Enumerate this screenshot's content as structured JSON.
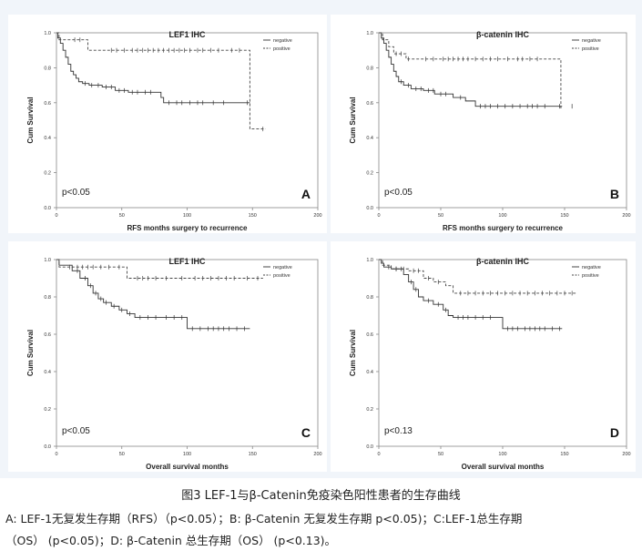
{
  "caption": {
    "title": "图3 LEF-1与β-Catenin免疫染色阳性患者的生存曲线",
    "line1": "A: LEF-1无复发生存期（RFS）（p<0.05）；B: β-Catenin 无复发生存期  p<0.05)；C:LEF-1总生存期",
    "line2": "（OS）  (p<0.05)；D: β-Catenin 总生存期（OS）  (p<0.13)。"
  },
  "colors": {
    "negative": "#333333",
    "positive": "#444444",
    "axis": "#888888",
    "panel_bg": "#ffffff",
    "figure_bg": "#f1f5fa"
  },
  "chart_data": [
    {
      "type": "line",
      "panel_letter": "A",
      "title": "LEF1 IHC",
      "xlabel": "RFS months surgery to recurrence",
      "ylabel": "Cum Survival",
      "pvalue": "p<0.05",
      "xticks": [
        "0",
        "50",
        "100",
        "150",
        "200"
      ],
      "yticks": [
        "0.0",
        "0.2",
        "0.4",
        "0.6",
        "0.8",
        "1.0"
      ],
      "xlim": [
        0,
        200
      ],
      "ylim": [
        0,
        1
      ],
      "legend": [
        "negative",
        "positive"
      ],
      "series": [
        {
          "name": "negative",
          "style": "solid",
          "steps": [
            [
              0,
              1.0
            ],
            [
              1,
              0.97
            ],
            [
              3,
              0.94
            ],
            [
              5,
              0.9
            ],
            [
              7,
              0.86
            ],
            [
              9,
              0.82
            ],
            [
              11,
              0.78
            ],
            [
              13,
              0.76
            ],
            [
              15,
              0.74
            ],
            [
              17,
              0.72
            ],
            [
              20,
              0.71
            ],
            [
              25,
              0.7
            ],
            [
              35,
              0.69
            ],
            [
              45,
              0.67
            ],
            [
              55,
              0.66
            ],
            [
              80,
              0.63
            ],
            [
              82,
              0.6
            ],
            [
              148,
              0.6
            ]
          ],
          "censored": [
            22,
            27,
            32,
            38,
            42,
            48,
            52,
            58,
            62,
            68,
            72,
            86,
            92,
            96,
            102,
            108,
            112,
            120,
            128,
            146
          ]
        },
        {
          "name": "positive",
          "style": "dashed",
          "steps": [
            [
              0,
              1.0
            ],
            [
              2,
              0.96
            ],
            [
              22,
              0.96
            ],
            [
              24,
              0.9
            ],
            [
              146,
              0.9
            ],
            [
              148,
              0.45
            ],
            [
              160,
              0.45
            ]
          ],
          "censored": [
            14,
            18,
            42,
            46,
            52,
            58,
            62,
            66,
            70,
            74,
            78,
            82,
            86,
            90,
            94,
            98,
            102,
            108,
            112,
            118,
            124,
            134,
            140,
            158
          ]
        }
      ]
    },
    {
      "type": "line",
      "panel_letter": "B",
      "title": "β-catenin IHC",
      "xlabel": "RFS months surgery to recurrence",
      "ylabel": "Cum Survival",
      "pvalue": "p<0.05",
      "xticks": [
        "0",
        "50",
        "100",
        "150",
        "200"
      ],
      "yticks": [
        "0.0",
        "0.2",
        "0.4",
        "0.6",
        "0.8",
        "1.0"
      ],
      "xlim": [
        0,
        200
      ],
      "ylim": [
        0,
        1
      ],
      "legend": [
        "negative",
        "positive"
      ],
      "series": [
        {
          "name": "negative",
          "style": "solid",
          "steps": [
            [
              0,
              1.0
            ],
            [
              2,
              0.97
            ],
            [
              4,
              0.94
            ],
            [
              6,
              0.9
            ],
            [
              8,
              0.86
            ],
            [
              10,
              0.82
            ],
            [
              12,
              0.78
            ],
            [
              14,
              0.75
            ],
            [
              16,
              0.72
            ],
            [
              20,
              0.7
            ],
            [
              26,
              0.68
            ],
            [
              36,
              0.67
            ],
            [
              45,
              0.65
            ],
            [
              60,
              0.63
            ],
            [
              70,
              0.61
            ],
            [
              78,
              0.58
            ],
            [
              148,
              0.58
            ]
          ],
          "censored": [
            18,
            24,
            30,
            34,
            40,
            44,
            50,
            54,
            66,
            82,
            86,
            90,
            96,
            102,
            108,
            114,
            120,
            124,
            128,
            134,
            146,
            156
          ]
        },
        {
          "name": "positive",
          "style": "dashed",
          "steps": [
            [
              0,
              1.0
            ],
            [
              3,
              0.96
            ],
            [
              8,
              0.92
            ],
            [
              12,
              0.88
            ],
            [
              22,
              0.85
            ],
            [
              146,
              0.85
            ],
            [
              147,
              0.57
            ],
            [
              148,
              0.57
            ]
          ],
          "censored": [
            14,
            18,
            24,
            38,
            44,
            52,
            56,
            60,
            64,
            68,
            72,
            78,
            84,
            90,
            96,
            104,
            112,
            116,
            122,
            128
          ]
        }
      ]
    },
    {
      "type": "line",
      "panel_letter": "C",
      "title": "LEF1 IHC",
      "xlabel": "Overall survival months",
      "ylabel": "Cum Survival",
      "pvalue": "p<0.05",
      "xticks": [
        "0",
        "50",
        "100",
        "150",
        "200"
      ],
      "yticks": [
        "0.0",
        "0.2",
        "0.4",
        "0.6",
        "0.8",
        "1.0"
      ],
      "xlim": [
        0,
        200
      ],
      "ylim": [
        0,
        1
      ],
      "legend": [
        "negative",
        "positive"
      ],
      "series": [
        {
          "name": "negative",
          "style": "solid",
          "steps": [
            [
              0,
              1.0
            ],
            [
              2,
              0.97
            ],
            [
              12,
              0.94
            ],
            [
              18,
              0.9
            ],
            [
              24,
              0.86
            ],
            [
              28,
              0.82
            ],
            [
              32,
              0.79
            ],
            [
              36,
              0.77
            ],
            [
              42,
              0.75
            ],
            [
              48,
              0.73
            ],
            [
              54,
              0.71
            ],
            [
              60,
              0.69
            ],
            [
              98,
              0.69
            ],
            [
              100,
              0.63
            ],
            [
              148,
              0.63
            ]
          ],
          "censored": [
            16,
            22,
            26,
            30,
            34,
            38,
            44,
            50,
            56,
            64,
            70,
            76,
            84,
            90,
            96,
            104,
            110,
            116,
            120,
            124,
            128,
            132,
            138,
            144
          ]
        },
        {
          "name": "positive",
          "style": "dashed",
          "steps": [
            [
              0,
              1.0
            ],
            [
              2,
              0.96
            ],
            [
              52,
              0.96
            ],
            [
              54,
              0.9
            ],
            [
              158,
              0.9
            ]
          ],
          "censored": [
            10,
            16,
            20,
            24,
            28,
            34,
            40,
            48,
            62,
            66,
            70,
            76,
            84,
            96,
            106,
            112,
            118,
            124,
            130,
            136,
            146,
            154
          ]
        }
      ]
    },
    {
      "type": "line",
      "panel_letter": "D",
      "title": "β-catenin IHC",
      "xlabel": "Overall survival months",
      "ylabel": "Cum Survival",
      "pvalue": "p<0.13",
      "xticks": [
        "0",
        "50",
        "100",
        "150",
        "200"
      ],
      "yticks": [
        "0.0",
        "0.2",
        "0.4",
        "0.6",
        "0.8",
        "1.0"
      ],
      "xlim": [
        0,
        200
      ],
      "ylim": [
        0,
        1
      ],
      "legend": [
        "negative",
        "positive"
      ],
      "series": [
        {
          "name": "negative",
          "style": "solid",
          "steps": [
            [
              0,
              1.0
            ],
            [
              2,
              0.98
            ],
            [
              4,
              0.96
            ],
            [
              10,
              0.95
            ],
            [
              20,
              0.92
            ],
            [
              24,
              0.88
            ],
            [
              28,
              0.84
            ],
            [
              32,
              0.8
            ],
            [
              36,
              0.78
            ],
            [
              44,
              0.76
            ],
            [
              52,
              0.73
            ],
            [
              56,
              0.7
            ],
            [
              60,
              0.69
            ],
            [
              98,
              0.69
            ],
            [
              100,
              0.63
            ],
            [
              148,
              0.63
            ]
          ],
          "censored": [
            8,
            14,
            18,
            26,
            30,
            40,
            48,
            54,
            64,
            68,
            72,
            78,
            84,
            90,
            104,
            108,
            112,
            118,
            122,
            126,
            130,
            134,
            140,
            146
          ]
        },
        {
          "name": "positive",
          "style": "dashed",
          "steps": [
            [
              0,
              1.0
            ],
            [
              3,
              0.97
            ],
            [
              10,
              0.95
            ],
            [
              24,
              0.94
            ],
            [
              36,
              0.9
            ],
            [
              44,
              0.88
            ],
            [
              54,
              0.86
            ],
            [
              60,
              0.82
            ],
            [
              160,
              0.82
            ]
          ],
          "censored": [
            14,
            20,
            28,
            32,
            40,
            48,
            66,
            72,
            78,
            84,
            90,
            96,
            102,
            108,
            114,
            120,
            126,
            132,
            138,
            144,
            150,
            156
          ]
        }
      ]
    }
  ]
}
